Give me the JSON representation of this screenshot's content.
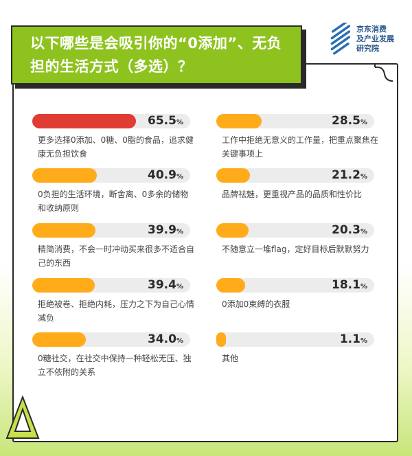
{
  "title": "以下哪些是会吸引你的“0添加”、无负担的生活方式（多选）？",
  "brand": {
    "line1": "京东消费",
    "line2": "及产业发展",
    "line3": "研究院"
  },
  "colors": {
    "accent_green": "#8ec31f",
    "bar_top": "#e03c33",
    "bar": "#ffab1a",
    "track": "#ececec"
  },
  "chart_data": {
    "type": "bar",
    "orientation": "horizontal",
    "unit": "%",
    "categories": [
      "更多选择0添加、0糖、0脂的食品，追求健康无负担饮食",
      "0负担的生活环境，断舍离、0多余的储物和收纳原则",
      "精简消费，不会一时冲动买来很多不适合自己的东西",
      "拒绝被卷、拒绝内耗，压力之下为自己心情减负",
      "0糖社交，在社交中保持一种轻松无压、独立不依附的关系",
      "工作中拒绝无意义的工作量，把重点聚焦在关键事项上",
      "品牌祛魅，更重视产品的品质和性价比",
      "不随意立一堆flag，定好目标后默默努力",
      "0添加0束缚的衣服",
      "其他"
    ],
    "values": [
      65.5,
      40.9,
      39.9,
      39.4,
      34.0,
      28.5,
      21.2,
      20.3,
      18.1,
      1.1
    ],
    "value_labels": [
      "65.5",
      "40.9",
      "39.9",
      "39.4",
      "34.0",
      "28.5",
      "21.2",
      "20.3",
      "18.1",
      "1.1"
    ],
    "xlim": [
      0,
      100
    ]
  }
}
